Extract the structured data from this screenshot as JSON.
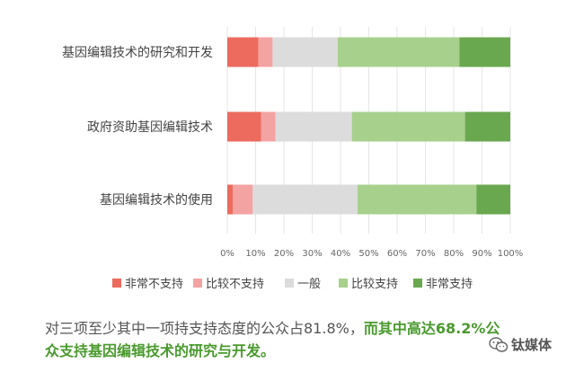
{
  "chart_data": {
    "type": "bar",
    "orientation": "horizontal",
    "stacked": true,
    "categories": [
      "基因编辑技术的研究和开发",
      "政府资助基因编辑技术",
      "基因编辑技术的使用"
    ],
    "series": [
      {
        "name": "非常不支持",
        "color": "#ec6b5e",
        "values": [
          11,
          12,
          2
        ]
      },
      {
        "name": "比较不支持",
        "color": "#f4a3a3",
        "values": [
          5,
          5,
          7
        ]
      },
      {
        "name": "一般",
        "color": "#dcdcdc",
        "values": [
          23,
          27,
          37
        ]
      },
      {
        "name": "比较支持",
        "color": "#a8d08d",
        "values": [
          43,
          40,
          42
        ]
      },
      {
        "name": "非常支持",
        "color": "#6aa84f",
        "values": [
          18,
          16,
          12
        ]
      }
    ],
    "xticks": [
      "0%",
      "10%",
      "20%",
      "30%",
      "40%",
      "50%",
      "60%",
      "70%",
      "80%",
      "90%",
      "100%"
    ],
    "xlim": [
      0,
      100
    ],
    "legend_position": "bottom",
    "grid": true
  },
  "caption": {
    "part1": "对三项至少其中一项持支持态度的公众占81.8%，",
    "part2": "而其中高达68.2%公众支持基因编辑技术的研究与开发。"
  },
  "watermark": {
    "text": "钛媒体",
    "icon": "wechat-icon"
  },
  "colors": {
    "grid": "#e6e6e6",
    "accent_text": "#4a9a2e"
  }
}
